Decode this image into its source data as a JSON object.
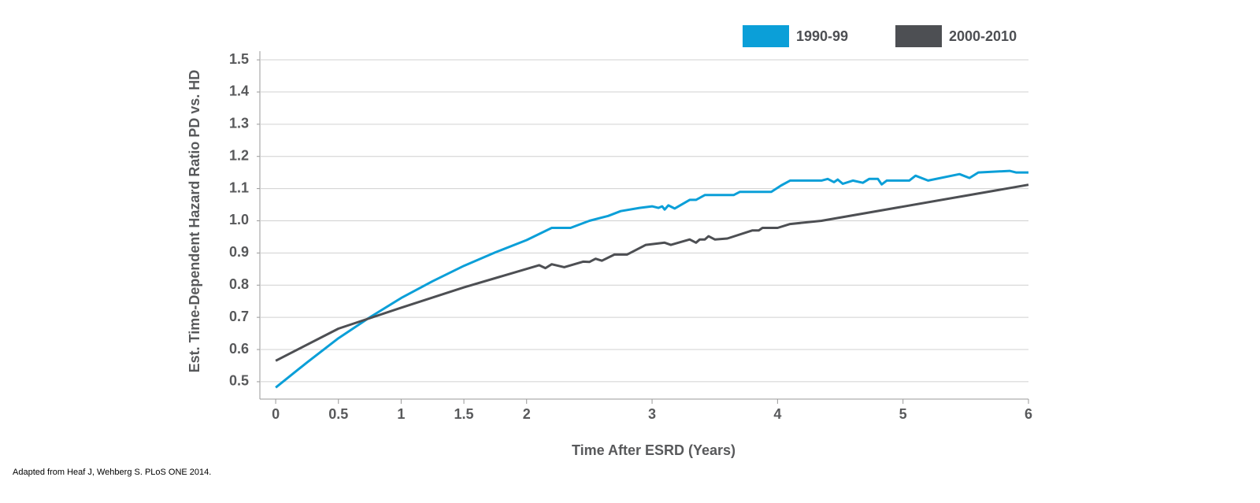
{
  "chart_data": {
    "type": "line",
    "xlabel": "Time After ESRD (Years)",
    "ylabel": "Est. Time-Dependent Hazard Ratio PD vs. HD",
    "note": "Adapted from Heaf J, Wehberg S. PLoS ONE 2014.",
    "xlim": [
      -0.126,
      6
    ],
    "ylim": [
      0.446,
      1.527
    ],
    "xticks": [
      0,
      0.5,
      1,
      1.5,
      2,
      3,
      4,
      5,
      6
    ],
    "yticks": [
      {
        "value": 0.5,
        "label": "0.5"
      },
      {
        "value": 0.6,
        "label": "0.6"
      },
      {
        "value": 0.7,
        "label": "0.7"
      },
      {
        "value": 0.8,
        "label": "0.8"
      },
      {
        "value": 0.9,
        "label": "0.9"
      },
      {
        "value": 1.0,
        "label": "1.0"
      },
      {
        "value": 1.1,
        "label": "1.1"
      },
      {
        "value": 1.2,
        "label": "1.2"
      },
      {
        "value": 1.3,
        "label": "1.3"
      },
      {
        "value": 1.4,
        "label": "1.4"
      },
      {
        "value": 1.5,
        "label": "1.5"
      }
    ],
    "grid": true,
    "legend": "top-right",
    "series": [
      {
        "name": "1990-99",
        "color": "#0b9fd8",
        "x": [
          0,
          0.25,
          0.5,
          0.75,
          1,
          1.25,
          1.5,
          1.75,
          2,
          2.2,
          2.35,
          2.5,
          2.65,
          2.75,
          2.9,
          3.0,
          3.05,
          3.08,
          3.1,
          3.13,
          3.18,
          3.3,
          3.35,
          3.42,
          3.65,
          3.7,
          3.95,
          4.03,
          4.1,
          4.35,
          4.4,
          4.45,
          4.48,
          4.52,
          4.6,
          4.68,
          4.73,
          4.8,
          4.83,
          4.87,
          5.05,
          5.1,
          5.2,
          5.45,
          5.53,
          5.6,
          5.85,
          5.9,
          6
        ],
        "values": [
          0.482,
          0.56,
          0.635,
          0.7,
          0.76,
          0.812,
          0.86,
          0.902,
          0.94,
          0.978,
          0.978,
          1.0,
          1.015,
          1.03,
          1.04,
          1.045,
          1.04,
          1.045,
          1.035,
          1.048,
          1.038,
          1.065,
          1.065,
          1.08,
          1.08,
          1.09,
          1.09,
          1.11,
          1.125,
          1.125,
          1.13,
          1.12,
          1.128,
          1.115,
          1.125,
          1.118,
          1.13,
          1.13,
          1.113,
          1.125,
          1.125,
          1.14,
          1.125,
          1.145,
          1.133,
          1.15,
          1.155,
          1.15,
          1.15
        ]
      },
      {
        "name": "2000-2010",
        "color": "#4d4f53",
        "x": [
          0,
          0.5,
          1,
          1.5,
          2.1,
          2.15,
          2.2,
          2.3,
          2.45,
          2.5,
          2.55,
          2.6,
          2.7,
          2.8,
          2.95,
          3.1,
          3.15,
          3.3,
          3.35,
          3.38,
          3.42,
          3.45,
          3.5,
          3.6,
          3.8,
          3.85,
          3.88,
          4.0,
          4.1,
          4.35,
          6
        ],
        "values": [
          0.565,
          0.665,
          0.73,
          0.793,
          0.862,
          0.853,
          0.865,
          0.856,
          0.873,
          0.872,
          0.882,
          0.876,
          0.895,
          0.895,
          0.925,
          0.932,
          0.925,
          0.942,
          0.932,
          0.942,
          0.942,
          0.952,
          0.942,
          0.945,
          0.97,
          0.97,
          0.978,
          0.978,
          0.99,
          1.0,
          1.112
        ]
      }
    ]
  }
}
